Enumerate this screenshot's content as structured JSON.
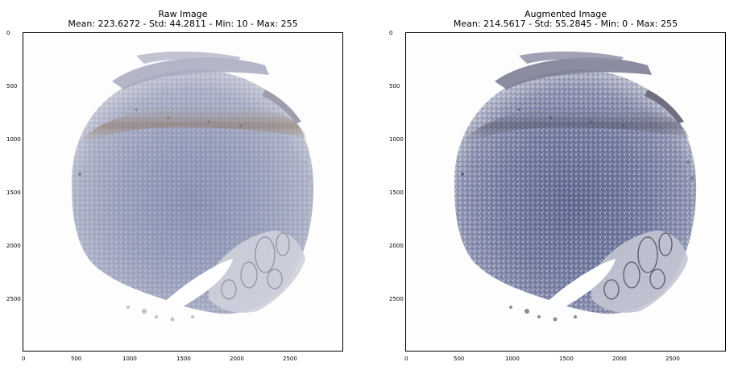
{
  "panels": [
    {
      "id": "raw",
      "title": "Raw Image",
      "subtitle": "Mean: 223.6272 - Std: 44.2811 - Min: 10 - Max: 255",
      "x_ticks": [
        "0",
        "500",
        "1000",
        "1500",
        "2000",
        "2500"
      ],
      "y_ticks": [
        "0",
        "500",
        "1000",
        "1500",
        "2000",
        "2500"
      ],
      "tissue_style": "lighter"
    },
    {
      "id": "augmented",
      "title": "Augmented Image",
      "subtitle": "Mean: 214.5617 - Std: 55.2845 - Min: 0 - Max: 255",
      "x_ticks": [
        "0",
        "500",
        "1000",
        "1500",
        "2000",
        "2500"
      ],
      "y_ticks": [
        "0",
        "500",
        "1000",
        "1500",
        "2000",
        "2500"
      ],
      "tissue_style": "higher-contrast"
    }
  ],
  "image": {
    "description_colors": {
      "background": "#ffffff",
      "tissue_blue": "#7e86a8",
      "tissue_brown": "#8a6a50",
      "tissue_light": "#c8c9d6"
    }
  }
}
